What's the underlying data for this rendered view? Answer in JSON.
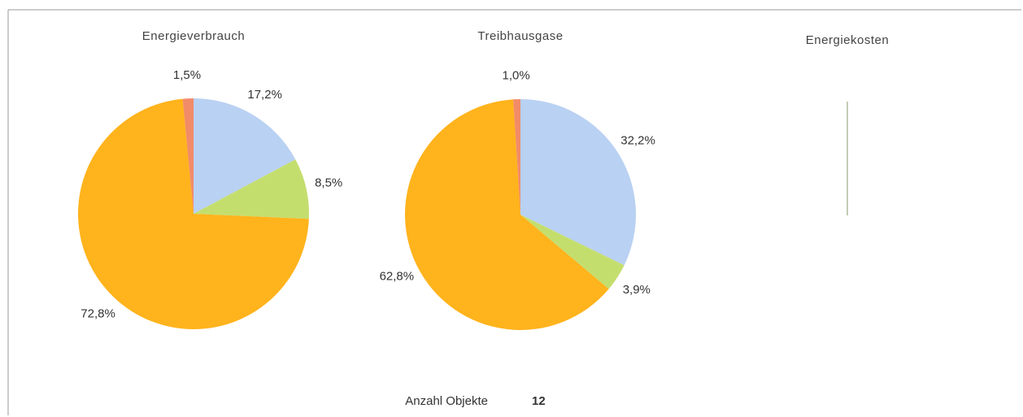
{
  "chart_data": [
    {
      "type": "pie",
      "title": "Energieverbrauch",
      "values": [
        17.2,
        8.5,
        72.8,
        1.5
      ],
      "value_labels": [
        "17,2%",
        "8,5%",
        "72,8%",
        "1,5%"
      ],
      "colors": [
        "#b9d1f2",
        "#c4de6e",
        "#ffb31c",
        "#f28b68"
      ]
    },
    {
      "type": "pie",
      "title": "Treibhausgase",
      "values": [
        32.2,
        3.9,
        62.8,
        1.0
      ],
      "value_labels": [
        "32,2%",
        "3,9%",
        "62,8%",
        "1,0%"
      ],
      "colors": [
        "#b9d1f2",
        "#c4de6e",
        "#ffb31c",
        "#f28b68"
      ]
    },
    {
      "type": "pie",
      "title": "Energiekosten"
    }
  ],
  "footer": {
    "label": "Anzahl Objekte",
    "value": 12
  }
}
